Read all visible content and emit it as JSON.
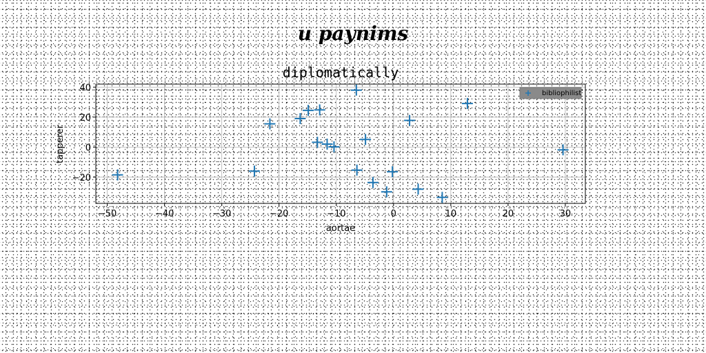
{
  "figure": {
    "suptitle": "u paynims"
  },
  "chart_data": {
    "type": "scatter",
    "title": "diplomatically",
    "xlabel": "aortae",
    "ylabel": "tapperer",
    "xlim": [
      -52,
      33.5
    ],
    "ylim": [
      -37.5,
      42
    ],
    "xticks": [
      -50,
      -40,
      -30,
      -20,
      -10,
      0,
      10,
      20,
      30
    ],
    "yticks": [
      -20,
      0,
      20,
      40
    ],
    "xtick_labels": [
      "−50",
      "−40",
      "−30",
      "−20",
      "−10",
      "0",
      "10",
      "20",
      "30"
    ],
    "ytick_labels": [
      "−20",
      "0",
      "20",
      "40"
    ],
    "grid": true,
    "legend_position": "top-right",
    "marker": "plus",
    "color": "#1f77b4",
    "series": [
      {
        "name": "bibliophilist",
        "x": [
          -48.2,
          -24.3,
          -21.6,
          -16.3,
          -14.9,
          -12.9,
          -13.3,
          -11.6,
          -10.4,
          -6.5,
          -6.4,
          -4.9,
          -3.6,
          -1.2,
          -0.2,
          2.8,
          4.3,
          8.5,
          12.9,
          29.6
        ],
        "y": [
          -18.5,
          -16.0,
          15.5,
          19.0,
          24.5,
          24.8,
          3.2,
          2.0,
          0.2,
          38.0,
          -15.3,
          5.1,
          -23.6,
          -29.8,
          -16.4,
          17.8,
          -28.0,
          -33.5,
          29.1,
          -1.8
        ]
      }
    ]
  }
}
